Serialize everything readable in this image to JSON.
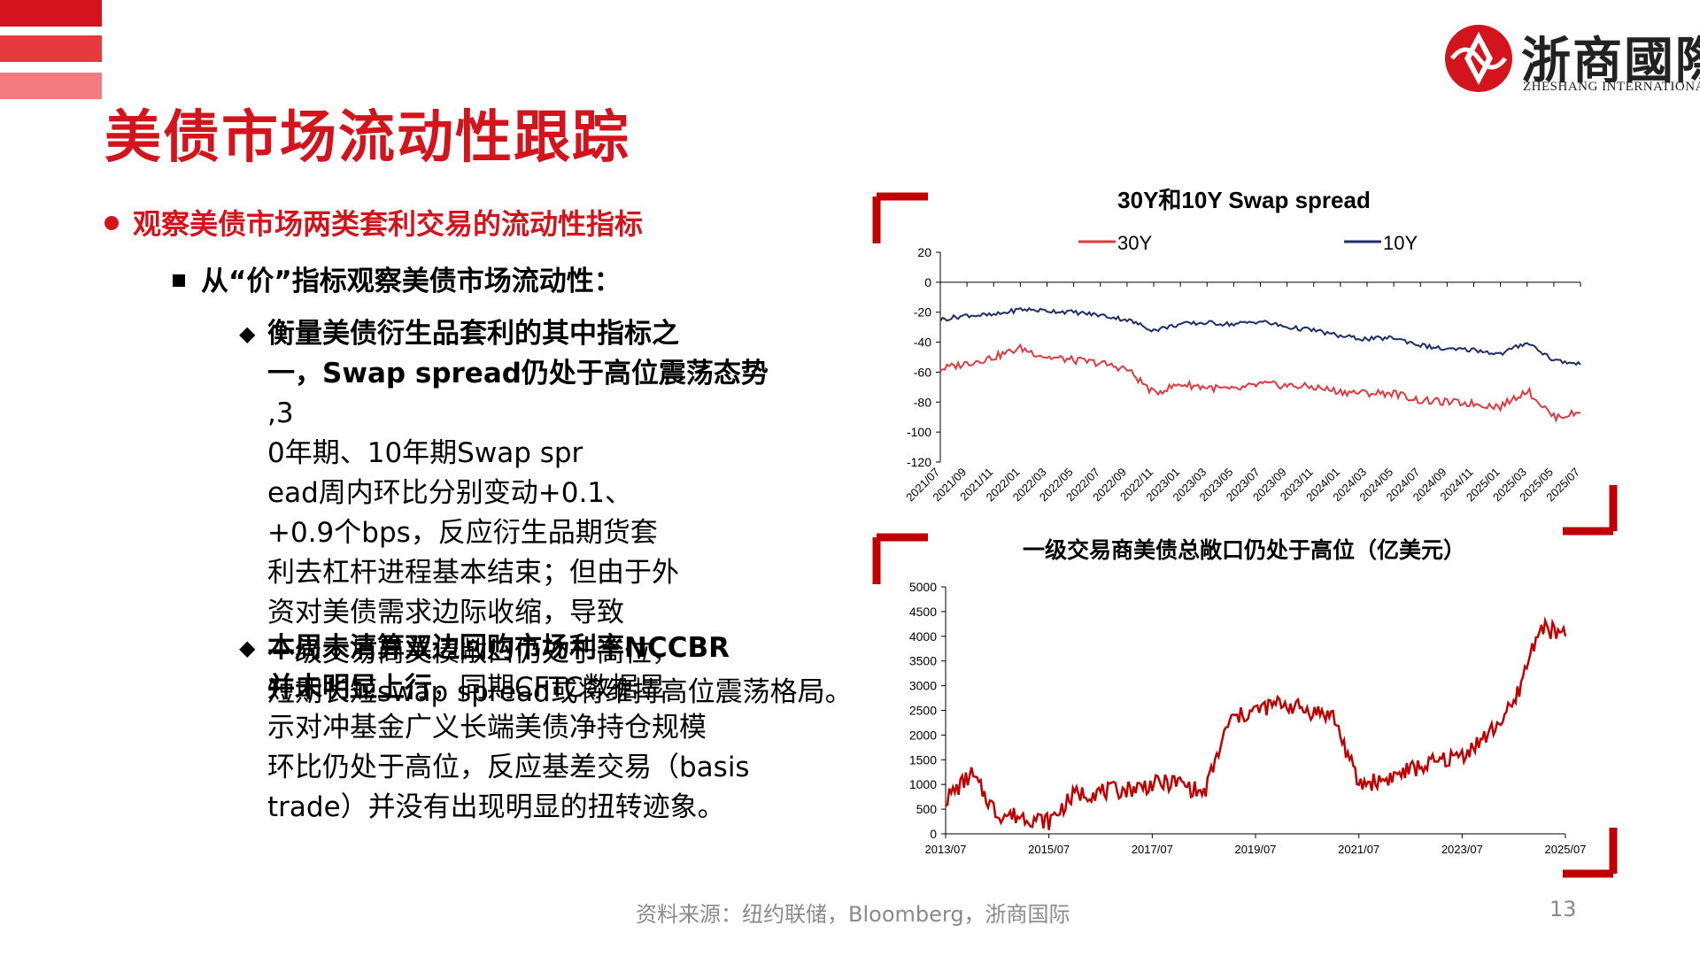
{
  "page": {
    "title": "美债市场流动性跟踪",
    "logo_cn": "浙商國際",
    "logo_en": "ZHESHANG INTERNATIONAL",
    "bullet1": "观察美债市场两类套利交易的流动性指标",
    "bullet2": "从“价”指标观察美债市场流动性：",
    "para1": {
      "bold": "衡量美债衍生品套利的其中指标之一，Swap spread仍处于高位震荡态势",
      "rest": ",30年期、10年期Swap spread周内环比分别变动+0.1、+0.9个bps，反应衍生品期货套利去杠杆进程基本结束；但由于外资对美债需求边际收缩，导致一级交易商美债敞口仍处于高位，短期长短swap spread或将维持高位震荡格局。"
    },
    "para2": {
      "bold": "本周未清算双边回购市场利率NCCBR并未明显上行",
      "rest": "，同期CFTC数据显示对冲基金广义长端美债净持仓规模环比仍处于高位，反应基差交易（basis trade）并没有出现明显的扭转迹象。"
    },
    "source": "资料来源：纽约联储，Bloomberg，浙商国际",
    "page_number": "13"
  },
  "colors": {
    "brand_red": "#d4141c",
    "series_30y": "#e0393e",
    "series_10y": "#1f2d6b",
    "series_exposure": "#c00000"
  },
  "chart_data": [
    {
      "type": "line",
      "title": "30Y和10Y Swap spread",
      "legend_position": "top",
      "ylim": [
        -120,
        20
      ],
      "yticks": [
        "20",
        "0",
        "-20",
        "-40",
        "-60",
        "-80",
        "-100",
        "-120"
      ],
      "xticks": [
        "2021/07",
        "2021/09",
        "2021/11",
        "2022/01",
        "2022/03",
        "2022/05",
        "2022/07",
        "2022/09",
        "2022/11",
        "2023/01",
        "2023/03",
        "2023/05",
        "2023/07",
        "2023/09",
        "2023/11",
        "2024/01",
        "2024/03",
        "2024/05",
        "2024/07",
        "2024/09",
        "2024/11",
        "2025/01",
        "2025/03",
        "2025/05",
        "2025/07"
      ],
      "x": [
        "2021/07",
        "2021/09",
        "2021/11",
        "2022/01",
        "2022/03",
        "2022/05",
        "2022/07",
        "2022/09",
        "2022/11",
        "2023/01",
        "2023/03",
        "2023/05",
        "2023/07",
        "2023/09",
        "2023/11",
        "2024/01",
        "2024/03",
        "2024/05",
        "2024/07",
        "2024/09",
        "2024/11",
        "2025/01",
        "2025/03",
        "2025/05",
        "2025/07"
      ],
      "series": [
        {
          "name": "30Y",
          "values": [
            -58,
            -54,
            -50,
            -44,
            -50,
            -52,
            -54,
            -58,
            -74,
            -68,
            -70,
            -72,
            -68,
            -69,
            -70,
            -73,
            -74,
            -74,
            -79,
            -80,
            -81,
            -83,
            -72,
            -90,
            -87
          ]
        },
        {
          "name": "10Y",
          "values": [
            -25,
            -22,
            -22,
            -18,
            -19,
            -20,
            -22,
            -25,
            -32,
            -28,
            -27,
            -28,
            -26,
            -30,
            -32,
            -36,
            -38,
            -37,
            -42,
            -45,
            -45,
            -48,
            -40,
            -52,
            -55
          ]
        }
      ]
    },
    {
      "type": "line",
      "title": "一级交易商美债总敞口仍处于高位（亿美元）",
      "ylim": [
        0,
        5000
      ],
      "yticks": [
        "5000",
        "4500",
        "4000",
        "3500",
        "3000",
        "2500",
        "2000",
        "1500",
        "1000",
        "500",
        "0"
      ],
      "xticks": [
        "2013/07",
        "2015/07",
        "2017/07",
        "2019/07",
        "2021/07",
        "2023/07",
        "2025/07"
      ],
      "x": [
        "2013/07",
        "2014/01",
        "2014/07",
        "2015/01",
        "2015/07",
        "2016/01",
        "2016/07",
        "2017/01",
        "2017/07",
        "2018/01",
        "2018/07",
        "2019/01",
        "2019/07",
        "2020/01",
        "2020/07",
        "2021/01",
        "2021/07",
        "2022/01",
        "2022/07",
        "2023/01",
        "2023/07",
        "2024/01",
        "2024/07",
        "2025/01",
        "2025/07"
      ],
      "series": [
        {
          "name": "",
          "values": [
            700,
            1200,
            400,
            350,
            250,
            800,
            850,
            900,
            1000,
            1050,
            800,
            2300,
            2500,
            2650,
            2500,
            2400,
            1000,
            1100,
            1300,
            1450,
            1600,
            2000,
            2600,
            4200,
            4000
          ]
        }
      ]
    }
  ]
}
